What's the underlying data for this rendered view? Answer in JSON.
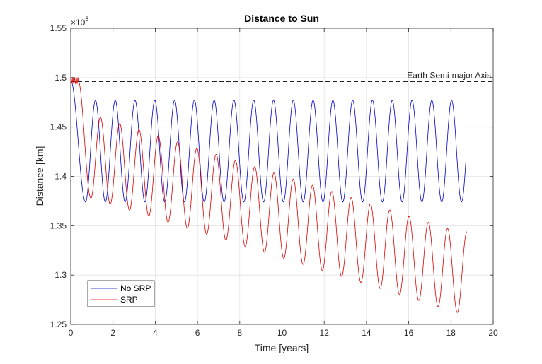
{
  "chart_data": {
    "type": "line",
    "title": "Distance to Sun",
    "xlabel": "Time [years]",
    "ylabel": "Distance [km]",
    "y_exponent_label": "×10",
    "y_exponent_power": "8",
    "xlim": [
      0,
      20
    ],
    "ylim": [
      1.25,
      1.55
    ],
    "xticks": [
      "0",
      "2",
      "4",
      "6",
      "8",
      "10",
      "12",
      "14",
      "16",
      "18",
      "20"
    ],
    "yticks": [
      "1.25",
      "1.3",
      "1.35",
      "1.4",
      "1.45",
      "1.5",
      "1.55"
    ],
    "grid": true,
    "legend_location": "bottom-left",
    "reference_line": {
      "label": "Earth Semi-major Axis",
      "y": 1.496,
      "style": "dashed",
      "color": "#000000"
    },
    "series": [
      {
        "name": "No SRP",
        "color": "#0000cc",
        "t_end": 18.7,
        "minima": [
          [
            0.7,
            1.374
          ],
          [
            18.5,
            1.374
          ]
        ],
        "maxima": [
          [
            1.2,
            1.477
          ],
          [
            18.0,
            1.477
          ]
        ]
      },
      {
        "name": "SRP",
        "color": "#dd0000",
        "t_end": 18.75,
        "minima": [
          [
            0.95,
            1.378
          ],
          [
            18.3,
            1.262
          ]
        ],
        "maxima": [
          [
            1.4,
            1.463
          ],
          [
            17.8,
            1.344
          ]
        ]
      }
    ]
  }
}
